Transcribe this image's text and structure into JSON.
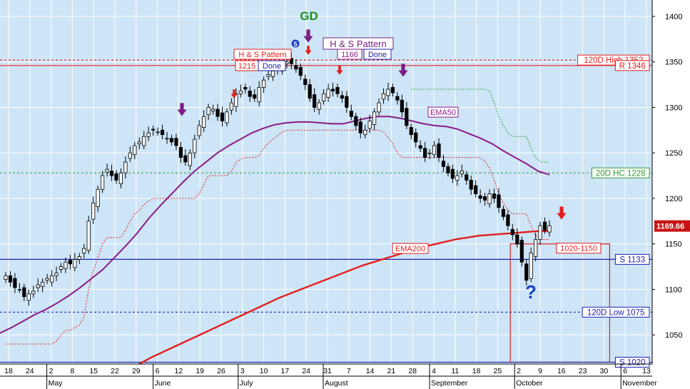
{
  "colors": {
    "background": "#cde5f7",
    "grid": "#ffffff",
    "ema50": "#8b1a86",
    "ema200": "#e41e1e",
    "resistance": "#e41e1e",
    "support": "#2020b0",
    "hc20": "#2e9a2e",
    "chandelier": "#e41e1e",
    "gd_text": "#1e8f1e",
    "purple_arrow": "#7b1f86",
    "red_arrow": "#e41e1e",
    "question": "#1a3cc8",
    "price_tag_bg": "#c81414"
  },
  "chart_data": {
    "type": "candlestick",
    "ylim": [
      1018,
      1418
    ],
    "y_ticks": [
      1050,
      1100,
      1150,
      1200,
      1250,
      1300,
      1350,
      1400
    ],
    "x_ticks": [
      "18",
      "24",
      "2",
      "8",
      "15",
      "22",
      "29",
      "6",
      "12",
      "19",
      "26",
      "3",
      "10",
      "17",
      "24",
      "31",
      "7",
      "14",
      "21",
      "28",
      "4",
      "11",
      "18",
      "25",
      "2",
      "9",
      "16",
      "23",
      "30",
      "6",
      "13"
    ],
    "months": [
      "May",
      "June",
      "July",
      "August",
      "September",
      "October",
      "November"
    ],
    "last_price_label": "1169.66",
    "last_price": 1169.66,
    "horizontal_levels": [
      {
        "label": "120D High 1352",
        "value": 1352,
        "style": "dashed",
        "color": "resistance"
      },
      {
        "label": "R 1346",
        "value": 1346,
        "style": "solid",
        "color": "resistance"
      },
      {
        "label": "20D HC 1228",
        "value": 1228,
        "style": "dashed",
        "color": "hc20"
      },
      {
        "label": "S 1133",
        "value": 1133,
        "style": "solid",
        "color": "support"
      },
      {
        "label": "120D Low 1075",
        "value": 1075,
        "style": "dashed",
        "color": "support"
      },
      {
        "label": "S 1020",
        "value": 1020,
        "style": "solid",
        "color": "support"
      }
    ],
    "zone_label": "1020-1150",
    "zone_range": [
      1020,
      1150
    ],
    "ema50_label": "EMA50",
    "ema200_label": "EMA200",
    "annotations": {
      "gd": "GD",
      "hs1_label": "H & S Pattern",
      "hs1_value": "1215",
      "hs1_done": "Done",
      "hs2_label": "H & S Pattern",
      "hs2_value": "1166",
      "hs2_done": "Done",
      "circle_num": "5",
      "question": "?"
    },
    "closes": [
      1115,
      1108,
      1102,
      1100,
      1092,
      1095,
      1098,
      1105,
      1108,
      1112,
      1115,
      1118,
      1125,
      1130,
      1128,
      1133,
      1136,
      1145,
      1175,
      1195,
      1210,
      1225,
      1232,
      1225,
      1220,
      1228,
      1240,
      1250,
      1258,
      1262,
      1268,
      1272,
      1275,
      1273,
      1270,
      1266,
      1262,
      1258,
      1245,
      1240,
      1250,
      1265,
      1280,
      1290,
      1300,
      1298,
      1290,
      1285,
      1295,
      1305,
      1315,
      1318,
      1320,
      1312,
      1310,
      1322,
      1330,
      1336,
      1340,
      1344,
      1348,
      1350,
      1348,
      1342,
      1335,
      1325,
      1310,
      1300,
      1305,
      1315,
      1320,
      1318,
      1315,
      1310,
      1300,
      1290,
      1280,
      1272,
      1275,
      1285,
      1295,
      1305,
      1315,
      1320,
      1316,
      1308,
      1295,
      1280,
      1270,
      1262,
      1255,
      1245,
      1250,
      1258,
      1245,
      1235,
      1228,
      1222,
      1225,
      1230,
      1220,
      1210,
      1205,
      1200,
      1198,
      1205,
      1200,
      1190,
      1180,
      1170,
      1160,
      1150,
      1130,
      1110,
      1140,
      1155,
      1170,
      1165,
      1170
    ],
    "ema50": [
      1052,
      1058,
      1065,
      1072,
      1078,
      1085,
      1093,
      1102,
      1112,
      1122,
      1135,
      1148,
      1162,
      1178,
      1192,
      1205,
      1218,
      1230,
      1240,
      1250,
      1258,
      1265,
      1272,
      1277,
      1281,
      1283,
      1284,
      1284,
      1283,
      1282,
      1282,
      1285,
      1288,
      1290,
      1290,
      1288,
      1285,
      1282,
      1280,
      1279,
      1276,
      1271,
      1266,
      1260,
      1252,
      1245,
      1238,
      1230,
      1226
    ],
    "ema200": [
      1018,
      1025,
      1031,
      1037,
      1043,
      1049,
      1055,
      1061,
      1067,
      1073,
      1079,
      1085,
      1091,
      1096,
      1101,
      1106,
      1111,
      1116,
      1121,
      1126,
      1130,
      1134,
      1138,
      1142,
      1146,
      1149,
      1152,
      1155,
      1157,
      1159,
      1160,
      1161,
      1162,
      1163,
      1164,
      1164
    ]
  }
}
